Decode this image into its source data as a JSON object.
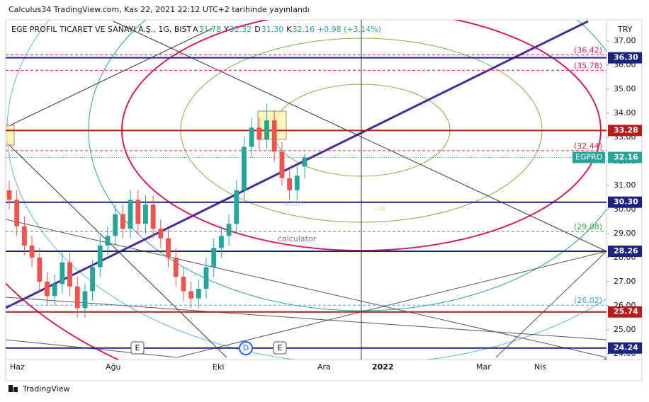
{
  "header": "Calculus34 TradingView.com, Kas 22, 2021 22:12 UTC+2 tarihinde yayınlandı",
  "footer": "TradingView",
  "watermark": {
    "brand": "altin",
    "domain": ".in",
    "sub": "calculator"
  },
  "events": [
    "E",
    "D",
    "E"
  ],
  "chart_data": {
    "type": "candlestick",
    "currency": "TRY",
    "symbol": "EGE PROFIL TICARET VE SANAYI A.Ş., 1G, BIST",
    "ohlc_legend": [
      {
        "key": "A",
        "value": "31.78"
      },
      {
        "key": "Y",
        "value": "32.32"
      },
      {
        "key": "D",
        "value": "31.30"
      },
      {
        "key": "K",
        "value": "32.16"
      }
    ],
    "change": "+0.98 (+3.14%)",
    "x_labels": [
      "Haz",
      "Ağu",
      "Eki",
      "Ara",
      "2022",
      "Mar",
      "Nis"
    ],
    "open": [
      30.8,
      30.4,
      29.3,
      28.5,
      28.0,
      27.0,
      26.4,
      26.9,
      27.8,
      26.8,
      25.9,
      26.6,
      27.6,
      28.5,
      28.9,
      29.8,
      29.2,
      30.4,
      29.4,
      30.2,
      29.2,
      28.8,
      28.0,
      27.2,
      26.6,
      26.3,
      26.7,
      27.6,
      28.4,
      28.9,
      29.4,
      30.8,
      32.6,
      33.4,
      32.9,
      33.7,
      32.4,
      31.3,
      30.8,
      31.78
    ],
    "high": [
      31.2,
      30.8,
      29.7,
      28.9,
      28.4,
      27.4,
      27.3,
      28.2,
      28.2,
      27.2,
      26.9,
      27.9,
      28.9,
      29.3,
      30.2,
      30.2,
      30.8,
      30.8,
      30.6,
      30.6,
      29.6,
      29.2,
      28.4,
      27.6,
      27.0,
      27.1,
      28.0,
      28.8,
      29.3,
      29.8,
      31.2,
      33.0,
      33.8,
      33.8,
      34.4,
      34.1,
      32.8,
      31.7,
      31.8,
      32.32
    ],
    "low": [
      30.0,
      28.9,
      28.1,
      27.6,
      26.6,
      26.0,
      26.0,
      26.5,
      26.4,
      25.5,
      25.5,
      26.2,
      27.2,
      28.1,
      28.5,
      28.8,
      28.8,
      29.0,
      29.0,
      28.8,
      28.4,
      27.6,
      26.8,
      26.2,
      25.9,
      25.9,
      26.3,
      27.2,
      28.0,
      28.5,
      29.0,
      30.4,
      32.2,
      32.5,
      32.5,
      32.0,
      31.0,
      30.4,
      30.4,
      31.3
    ],
    "close": [
      30.4,
      29.3,
      28.5,
      28.0,
      27.0,
      26.4,
      26.9,
      27.8,
      26.8,
      25.9,
      26.6,
      27.6,
      28.5,
      28.9,
      29.8,
      29.2,
      30.4,
      29.4,
      30.2,
      29.2,
      28.8,
      28.0,
      27.2,
      26.6,
      26.3,
      26.7,
      27.6,
      28.4,
      28.9,
      29.4,
      30.8,
      32.6,
      33.4,
      32.9,
      33.7,
      32.4,
      31.3,
      30.8,
      31.4,
      32.16
    ],
    "up_color": "#26a69a",
    "down_color": "#ef5350",
    "ylim": [
      23.85,
      37.82
    ],
    "yticks": [
      {
        "value": 24,
        "label": "24.00"
      },
      {
        "value": 25,
        "label": "25.00"
      },
      {
        "value": 26,
        "label": "26.00"
      },
      {
        "value": 27,
        "label": "27.00"
      },
      {
        "value": 28,
        "label": "28.00"
      },
      {
        "value": 29,
        "label": "29.00"
      },
      {
        "value": 30,
        "label": "30.00"
      },
      {
        "value": 31,
        "label": "31.00"
      },
      {
        "value": 32,
        "label": "32.00"
      },
      {
        "value": 33,
        "label": "33.00"
      },
      {
        "value": 34,
        "label": "34.00"
      },
      {
        "value": 35,
        "label": "35.00"
      },
      {
        "value": 36,
        "label": "36.00"
      },
      {
        "value": 37,
        "label": "37.00"
      }
    ],
    "levels": [
      {
        "value": 36.3,
        "label": "36.30",
        "color": "#1a237e"
      },
      {
        "value": 33.28,
        "label": "33.28",
        "color": "#b71c1c"
      },
      {
        "value": 30.3,
        "label": "30.30",
        "color": "#1a237e"
      },
      {
        "value": 28.26,
        "label": "28.26",
        "color": "#1a237e"
      },
      {
        "value": 25.74,
        "label": "25.74",
        "color": "#b71c1c"
      },
      {
        "value": 24.24,
        "label": "24.24",
        "color": "#1a237e"
      }
    ],
    "last": {
      "name": "EGPRO",
      "value": 32.16,
      "label": "32.16",
      "color": "#26a69a"
    },
    "dashed_levels": [
      {
        "value": 36.42,
        "label": "(36.42)",
        "color": "#e91e63"
      },
      {
        "value": 35.78,
        "label": "(35.78)",
        "color": "#e91e63"
      },
      {
        "value": 32.44,
        "label": "(32.44)",
        "color": "#e53935"
      },
      {
        "value": 29.08,
        "label": "(29.08)",
        "color": "#43a047"
      },
      {
        "value": 26.02,
        "label": "(26.02)",
        "color": "#42a5f5"
      }
    ]
  }
}
